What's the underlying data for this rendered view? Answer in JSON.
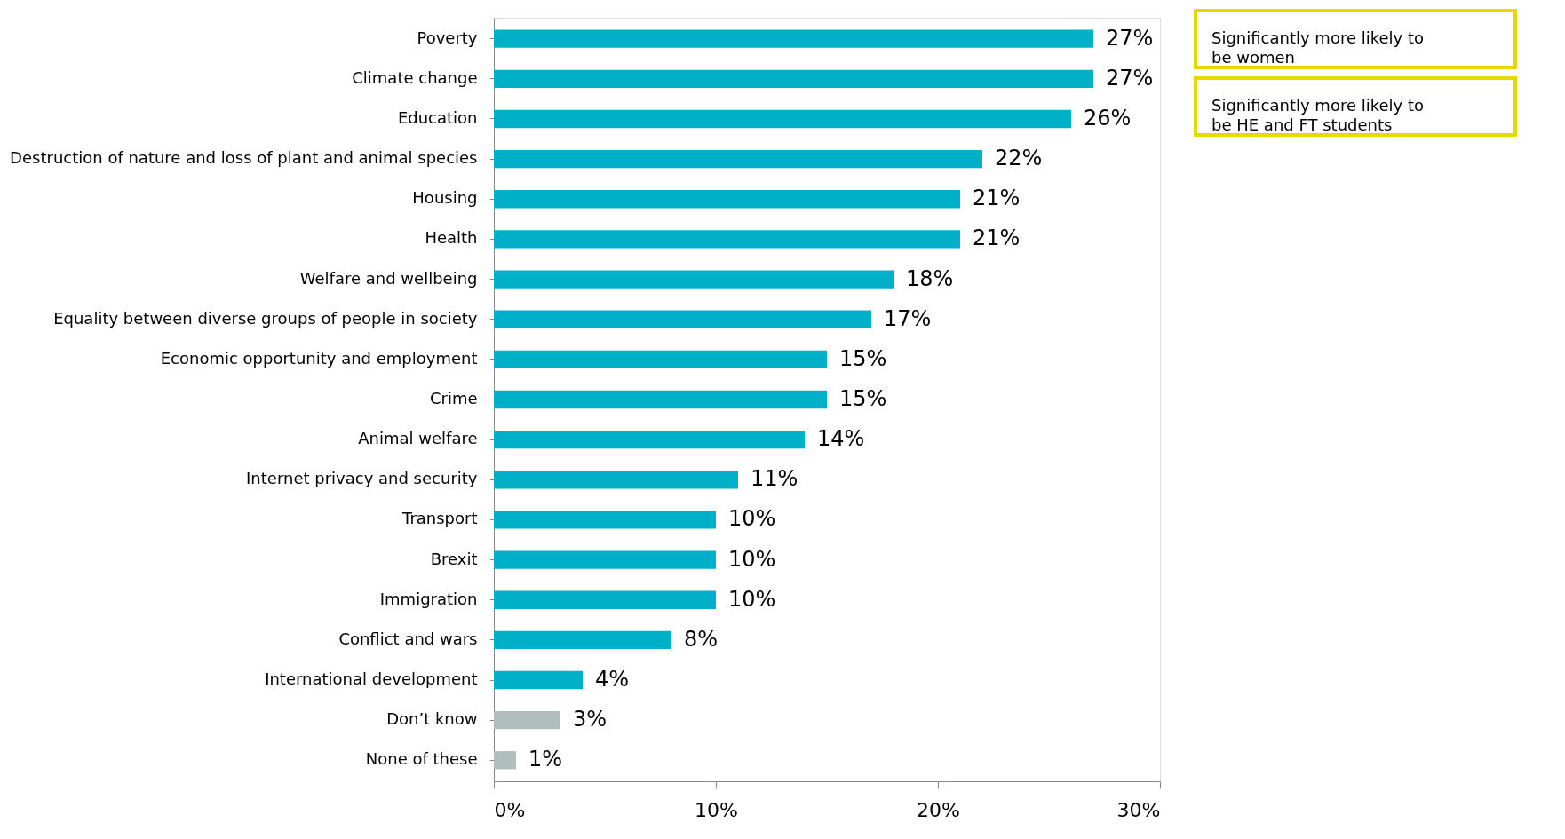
{
  "chart_data": {
    "type": "bar",
    "orientation": "horizontal",
    "categories": [
      "Poverty",
      "Climate change",
      "Education",
      "Destruction of nature and loss of plant and animal species",
      "Housing",
      "Health",
      "Welfare and wellbeing",
      "Equality between diverse groups of people in society",
      "Economic opportunity and employment",
      "Crime",
      "Animal welfare",
      "Internet privacy and security",
      "Transport",
      "Brexit",
      "Immigration",
      "Conflict and wars",
      "International development",
      "Don’t know",
      "None of these"
    ],
    "values": [
      27,
      27,
      26,
      22,
      21,
      21,
      18,
      17,
      15,
      15,
      14,
      11,
      10,
      10,
      10,
      8,
      4,
      3,
      1
    ],
    "value_labels": [
      "27%",
      "27%",
      "26%",
      "22%",
      "21%",
      "21%",
      "18%",
      "17%",
      "15%",
      "15%",
      "14%",
      "11%",
      "10%",
      "10%",
      "10%",
      "8%",
      "4%",
      "3%",
      "1%"
    ],
    "colors": [
      "#00b0c8",
      "#00b0c8",
      "#00b0c8",
      "#00b0c8",
      "#00b0c8",
      "#00b0c8",
      "#00b0c8",
      "#00b0c8",
      "#00b0c8",
      "#00b0c8",
      "#00b0c8",
      "#00b0c8",
      "#00b0c8",
      "#00b0c8",
      "#00b0c8",
      "#00b0c8",
      "#00b0c8",
      "#b0bfbc",
      "#b0bfbc"
    ],
    "xlim": [
      0,
      30
    ],
    "xticks": [
      {
        "value": 0,
        "label": "0%"
      },
      {
        "value": 10,
        "label": "10%"
      },
      {
        "value": 20,
        "label": "20%"
      },
      {
        "value": 30,
        "label": "30%"
      }
    ],
    "grid": false,
    "annotations": [
      "Significantly more likely to be women",
      "Significantly more likely to be HE and FT students"
    ]
  }
}
